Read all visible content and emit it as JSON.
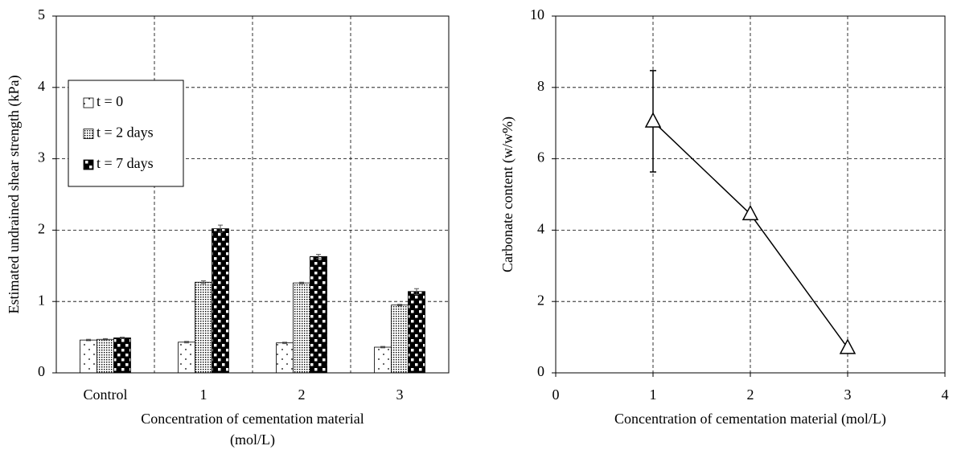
{
  "chart_data": [
    {
      "type": "bar",
      "y_label": "Estimated undrained shear strength (kPa)",
      "x_label": [
        "Concentration of cementation material",
        "(mol/L)"
      ],
      "categories": [
        "Control",
        "1",
        "2",
        "3"
      ],
      "series": [
        {
          "name": "t = 0",
          "values": [
            0.46,
            0.43,
            0.42,
            0.36
          ],
          "errors": [
            0.01,
            0.01,
            0.01,
            0.01
          ]
        },
        {
          "name": "t = 2 days",
          "values": [
            0.47,
            1.27,
            1.26,
            0.95
          ],
          "errors": [
            0.01,
            0.02,
            0.01,
            0.01
          ]
        },
        {
          "name": "t = 7 days",
          "values": [
            0.49,
            2.02,
            1.63,
            1.14
          ],
          "errors": [
            0.01,
            0.05,
            0.03,
            0.04
          ]
        }
      ],
      "ylim": [
        0,
        5
      ],
      "yticks": [
        0,
        1,
        2,
        3,
        4,
        5
      ],
      "grid": true,
      "legend": "upper left"
    },
    {
      "type": "line",
      "y_label": "Carbonate content (w/w%)",
      "x_label": "Concentration of cementation material (mol/L)",
      "x": [
        1,
        2,
        3
      ],
      "series": [
        {
          "values": [
            7.05,
            4.45,
            0.7
          ],
          "errors": [
            1.42,
            null,
            null
          ],
          "color": "#000000"
        }
      ],
      "xlim": [
        0,
        4
      ],
      "xticks": [
        0,
        1,
        2,
        3,
        4
      ],
      "ylim": [
        0,
        10
      ],
      "yticks": [
        0,
        2,
        4,
        6,
        8,
        10
      ],
      "grid": true
    }
  ]
}
